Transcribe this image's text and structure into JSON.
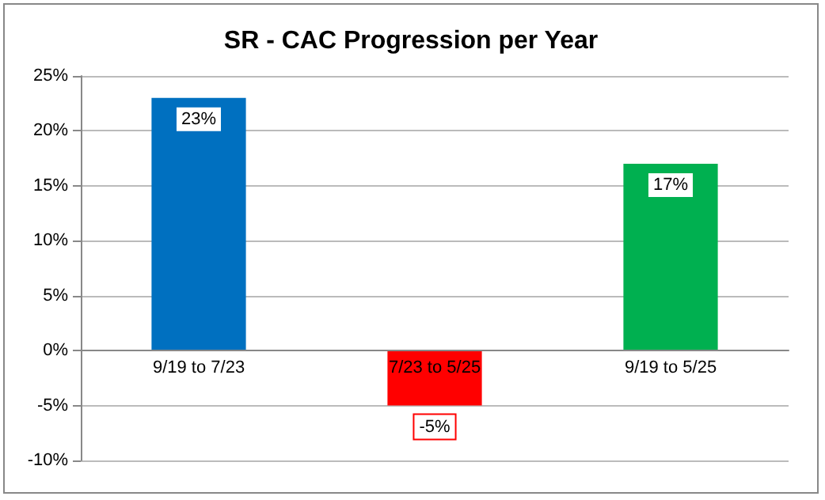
{
  "chart_data": {
    "type": "bar",
    "title": "SR - CAC Progression per Year",
    "categories": [
      "9/19 to 7/23",
      "7/23 to 5/25",
      "9/19 to 5/25"
    ],
    "values": [
      23,
      -5,
      17
    ],
    "colors": [
      "#0070c0",
      "#ff0000",
      "#00b050"
    ],
    "value_labels": [
      "23%",
      "-5%",
      "17%"
    ],
    "ylim": [
      -10,
      25
    ],
    "yticks": [
      {
        "value": -10,
        "label": "-10%"
      },
      {
        "value": -5,
        "label": "-5%"
      },
      {
        "value": 0,
        "label": "0%"
      },
      {
        "value": 5,
        "label": "5%"
      },
      {
        "value": 10,
        "label": "10%"
      },
      {
        "value": 15,
        "label": "15%"
      },
      {
        "value": 20,
        "label": "20%"
      },
      {
        "value": 25,
        "label": "25%"
      }
    ],
    "grid": "y"
  }
}
